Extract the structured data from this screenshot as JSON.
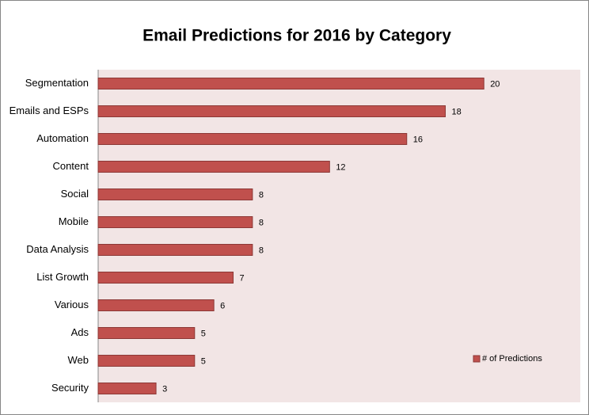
{
  "chart_data": {
    "type": "bar",
    "orientation": "horizontal",
    "title": "Email Predictions for 2016 by Category",
    "categories": [
      "Segmentation",
      "Emails and ESPs",
      "Automation",
      "Content",
      "Social",
      "Mobile",
      "Data Analysis",
      "List Growth",
      "Various",
      "Ads",
      "Web",
      "Security"
    ],
    "series": [
      {
        "name": "# of Predictions",
        "color": "#c0504d",
        "values": [
          20,
          18,
          16,
          12,
          8,
          8,
          8,
          7,
          6,
          5,
          5,
          3
        ]
      }
    ],
    "xlim": [
      0,
      25
    ],
    "legend": "bottom-right"
  }
}
